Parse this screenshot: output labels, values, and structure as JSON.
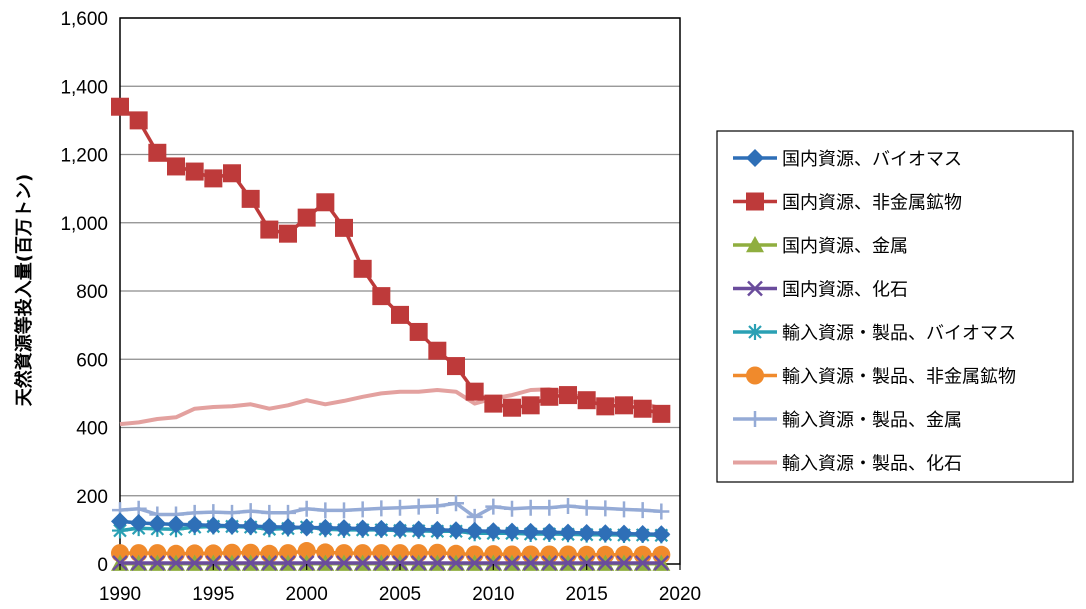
{
  "chart_data": {
    "type": "line",
    "ylabel": "天然資源等投入量(百万トン)",
    "xlim": [
      1990,
      2020
    ],
    "ylim": [
      0,
      1600
    ],
    "x_ticks": [
      "1990",
      "1995",
      "2000",
      "2005",
      "2010",
      "2015",
      "2020"
    ],
    "y_ticks": [
      "0",
      "200",
      "400",
      "600",
      "800",
      "1,000",
      "1,200",
      "1,400",
      "1,600"
    ],
    "grid": "horizontal",
    "legend_position": "right",
    "x": [
      1990,
      1991,
      1992,
      1993,
      1994,
      1995,
      1996,
      1997,
      1998,
      1999,
      2000,
      2001,
      2002,
      2003,
      2004,
      2005,
      2006,
      2007,
      2008,
      2009,
      2010,
      2011,
      2012,
      2013,
      2014,
      2015,
      2016,
      2017,
      2018,
      2019
    ],
    "series": [
      {
        "name": "国内資源、バイオマス",
        "color": "#2e6fb7",
        "marker": "diamond",
        "values": [
          125,
          120,
          118,
          116,
          115,
          113,
          112,
          111,
          109,
          108,
          107,
          106,
          105,
          104,
          103,
          102,
          101,
          100,
          99,
          97,
          96,
          95,
          94,
          93,
          92,
          91,
          90,
          89,
          88,
          87
        ]
      },
      {
        "name": "国内資源、非金属鉱物",
        "color": "#be3a3a",
        "marker": "square",
        "values": [
          1340,
          1300,
          1205,
          1165,
          1150,
          1130,
          1145,
          1070,
          980,
          968,
          1015,
          1060,
          985,
          865,
          785,
          730,
          680,
          625,
          580,
          505,
          470,
          458,
          465,
          490,
          495,
          480,
          462,
          465,
          455,
          440
        ]
      },
      {
        "name": "国内資源、金属",
        "color": "#8fae3f",
        "marker": "triangle",
        "values": [
          1,
          1,
          1,
          1,
          1,
          1,
          1,
          1,
          1,
          1,
          1,
          1,
          1,
          1,
          1,
          1,
          1,
          1,
          1,
          1,
          1,
          1,
          1,
          1,
          1,
          1,
          1,
          1,
          1,
          1
        ]
      },
      {
        "name": "国内資源、化石",
        "color": "#6a4c9c",
        "marker": "x",
        "values": [
          3,
          3,
          3,
          3,
          3,
          3,
          3,
          3,
          3,
          3,
          3,
          3,
          3,
          3,
          3,
          3,
          3,
          3,
          3,
          3,
          3,
          3,
          3,
          3,
          3,
          3,
          3,
          3,
          3,
          3
        ]
      },
      {
        "name": "輸入資源・製品、バイオマス",
        "color": "#2aa0b4",
        "marker": "asterisk",
        "values": [
          98,
          105,
          103,
          102,
          108,
          110,
          110,
          108,
          102,
          104,
          108,
          102,
          100,
          100,
          100,
          98,
          97,
          96,
          96,
          90,
          90,
          90,
          88,
          88,
          87,
          86,
          86,
          85,
          85,
          84
        ]
      },
      {
        "name": "輸入資源・製品、非金属鉱物",
        "color": "#f08a2c",
        "marker": "circle",
        "values": [
          32,
          32,
          32,
          30,
          31,
          31,
          33,
          33,
          30,
          32,
          38,
          34,
          32,
          32,
          32,
          32,
          32,
          33,
          30,
          28,
          29,
          28,
          28,
          28,
          28,
          27,
          27,
          27,
          27,
          27
        ]
      },
      {
        "name": "輸入資源・製品、金属",
        "color": "#95abd6",
        "marker": "plus",
        "values": [
          158,
          162,
          145,
          145,
          150,
          152,
          150,
          155,
          150,
          150,
          162,
          157,
          157,
          160,
          163,
          165,
          168,
          170,
          178,
          138,
          168,
          162,
          165,
          165,
          170,
          165,
          163,
          160,
          158,
          154
        ]
      },
      {
        "name": "輸入資源・製品、化石",
        "color": "#e3a19f",
        "marker": "none",
        "values": [
          410,
          415,
          425,
          430,
          455,
          460,
          462,
          468,
          455,
          465,
          480,
          468,
          478,
          490,
          500,
          505,
          505,
          510,
          505,
          470,
          485,
          495,
          510,
          512,
          500,
          485,
          480,
          478,
          472,
          455
        ]
      }
    ]
  }
}
